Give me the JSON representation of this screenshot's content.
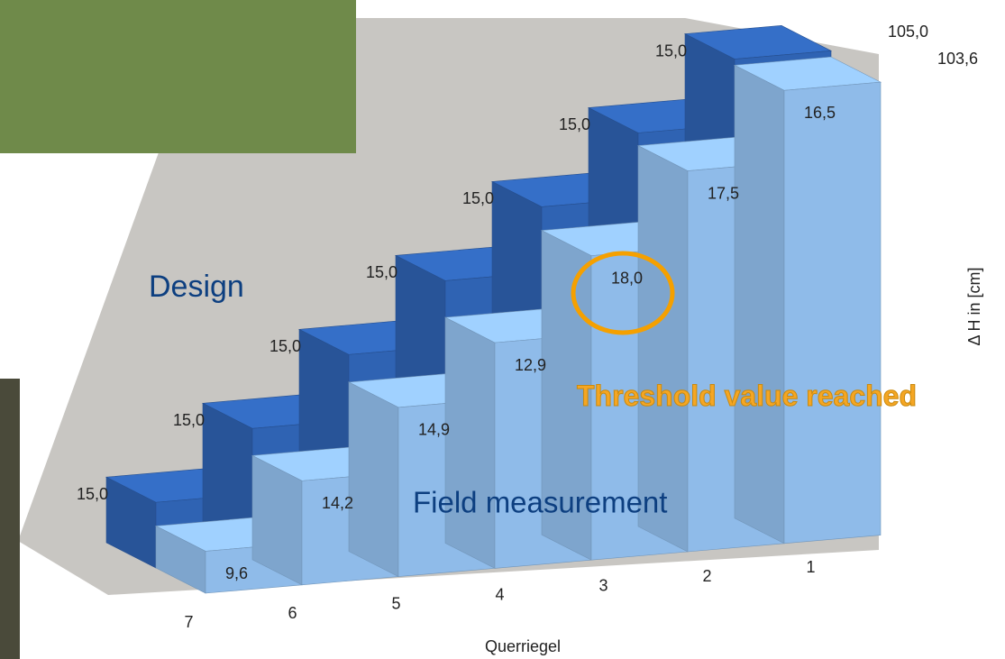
{
  "chart_data": {
    "type": "stair3d",
    "categories": [
      "7",
      "6",
      "5",
      "4",
      "3",
      "2",
      "1"
    ],
    "series": [
      {
        "name": "Design",
        "color": "#2f63b3",
        "values": [
          15.0,
          15.0,
          15.0,
          15.0,
          15.0,
          15.0,
          15.0
        ],
        "value_labels": [
          "15,0",
          "15,0",
          "15,0",
          "15,0",
          "15,0",
          "15,0",
          "15,0"
        ]
      },
      {
        "name": "Field measurement",
        "color": "#8fbbe9",
        "values": [
          9.6,
          14.2,
          14.9,
          12.9,
          18.0,
          17.5,
          16.5
        ],
        "value_labels": [
          "9,6",
          "14,2",
          "14,9",
          "12,9",
          "18,0",
          "17,5",
          "16,5"
        ]
      }
    ],
    "totals": [
      {
        "value": 105.0,
        "label": "105,0"
      },
      {
        "value": 103.6,
        "label": "103,6"
      }
    ],
    "xlabel": "Querriegel",
    "ylabel": "Δ H in [cm]",
    "annotation": "Threshold value reached"
  }
}
